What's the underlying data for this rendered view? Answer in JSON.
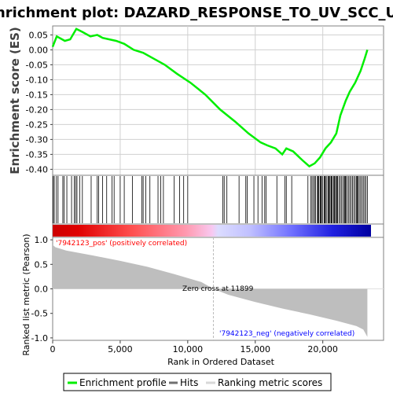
{
  "title": "Enrichment plot: DAZARD_RESPONSE_TO_UV_SCC_UP",
  "colors": {
    "es_line": "#00ee00",
    "hits": "#000000",
    "metric_fill": "#bebebe",
    "pos_label": "#ff0000",
    "neg_label": "#0000ff",
    "zero_line": "#bbbbbb"
  },
  "chart_data": [
    {
      "type": "line",
      "name": "es-plot",
      "ylabel": "Enrichment score (ES)",
      "ylim": [
        -0.42,
        0.08
      ],
      "yticks": [
        "0.05",
        "0.00",
        "-0.05",
        "-0.10",
        "-0.15",
        "-0.20",
        "-0.25",
        "-0.30",
        "-0.35",
        "-0.40"
      ],
      "ytick_values": [
        0.05,
        0.0,
        -0.05,
        -0.1,
        -0.15,
        -0.2,
        -0.25,
        -0.3,
        -0.35,
        -0.4
      ],
      "grid": true,
      "x": [
        0,
        300,
        900,
        1300,
        1750,
        2200,
        2800,
        3300,
        3700,
        4200,
        4700,
        5300,
        6000,
        6700,
        7500,
        8300,
        9200,
        10200,
        11300,
        12400,
        13500,
        14500,
        15400,
        15900,
        16500,
        17000,
        17300,
        17800,
        18500,
        19000,
        19400,
        19800,
        20200,
        20600,
        21000,
        21300,
        21700,
        22000,
        22400,
        22800,
        23100,
        23300
      ],
      "y": [
        0.01,
        0.045,
        0.03,
        0.035,
        0.07,
        0.06,
        0.045,
        0.05,
        0.04,
        0.035,
        0.03,
        0.02,
        0.0,
        -0.01,
        -0.03,
        -0.05,
        -0.08,
        -0.11,
        -0.15,
        -0.2,
        -0.24,
        -0.28,
        -0.31,
        -0.32,
        -0.33,
        -0.35,
        -0.33,
        -0.34,
        -0.37,
        -0.39,
        -0.38,
        -0.36,
        -0.33,
        -0.31,
        -0.28,
        -0.22,
        -0.17,
        -0.14,
        -0.11,
        -0.07,
        -0.03,
        0.0
      ],
      "xlim": [
        0,
        24500
      ],
      "legend": "Enrichment profile"
    },
    {
      "type": "line",
      "name": "hits",
      "legend": "Hits",
      "hit_positions": [
        40,
        120,
        280,
        400,
        750,
        850,
        1050,
        1400,
        1600,
        1700,
        1800,
        2000,
        2200,
        2850,
        3300,
        3400,
        3700,
        4000,
        4400,
        4550,
        5000,
        5300,
        5900,
        6600,
        6700,
        6900,
        7200,
        7800,
        8000,
        8200,
        9000,
        9400,
        9700,
        10000,
        12600,
        12700,
        12900,
        13800,
        14300,
        14400,
        14900,
        15200,
        15500,
        15700,
        15800,
        16600,
        17200,
        17300,
        17700,
        18900,
        19100,
        19200,
        19300,
        19400,
        19450,
        19600,
        19650,
        19700,
        19800,
        19850,
        19900,
        20000,
        20100,
        20150,
        20200,
        20300,
        20400,
        20450,
        20500,
        20600,
        20650,
        20700,
        20800,
        20850,
        20900,
        21000,
        21050,
        21100,
        21200,
        21300,
        21400,
        21500,
        21600,
        21650,
        21700,
        21800,
        21900,
        22000,
        22100,
        22200,
        22300,
        22400,
        22500,
        22550,
        22600,
        22700,
        22800,
        22900,
        23000,
        23100,
        23200,
        23300
      ]
    },
    {
      "type": "area",
      "name": "ranked-metric",
      "legend": "Ranking metric scores",
      "xlabel": "Rank in Ordered Dataset",
      "ylabel": "Ranked list metric (Pearson)",
      "ylim": [
        -1.05,
        1.05
      ],
      "yticks": [
        "1.0",
        "0.5",
        "0.0",
        "-0.5",
        "-1.0"
      ],
      "ytick_values": [
        1.0,
        0.5,
        0.0,
        -0.5,
        -1.0
      ],
      "xticks": [
        "0",
        "5,000",
        "10,000",
        "15,000",
        "20,000"
      ],
      "xtick_values": [
        0,
        5000,
        10000,
        15000,
        20000
      ],
      "xlim": [
        0,
        24500
      ],
      "x": [
        0,
        200,
        1000,
        3000,
        5000,
        7000,
        9000,
        11000,
        11899,
        13000,
        15000,
        17000,
        19000,
        21000,
        22500,
        23000,
        23300
      ],
      "y": [
        0.9,
        0.85,
        0.78,
        0.68,
        0.57,
        0.45,
        0.3,
        0.14,
        0.0,
        -0.12,
        -0.27,
        -0.4,
        -0.52,
        -0.65,
        -0.76,
        -0.83,
        -0.98
      ]
    }
  ],
  "annotations": {
    "pos_label": "'7942123_pos' (positively correlated)",
    "neg_label": "'7942123_neg' (negatively correlated)",
    "zero_cross": "Zero cross at 11899"
  },
  "legend": {
    "items": [
      {
        "label": "Enrichment profile",
        "color": "#00ee00"
      },
      {
        "label": "Hits",
        "color": "#707070"
      },
      {
        "label": "Ranking metric scores",
        "color": "#d8d8d8"
      }
    ]
  }
}
